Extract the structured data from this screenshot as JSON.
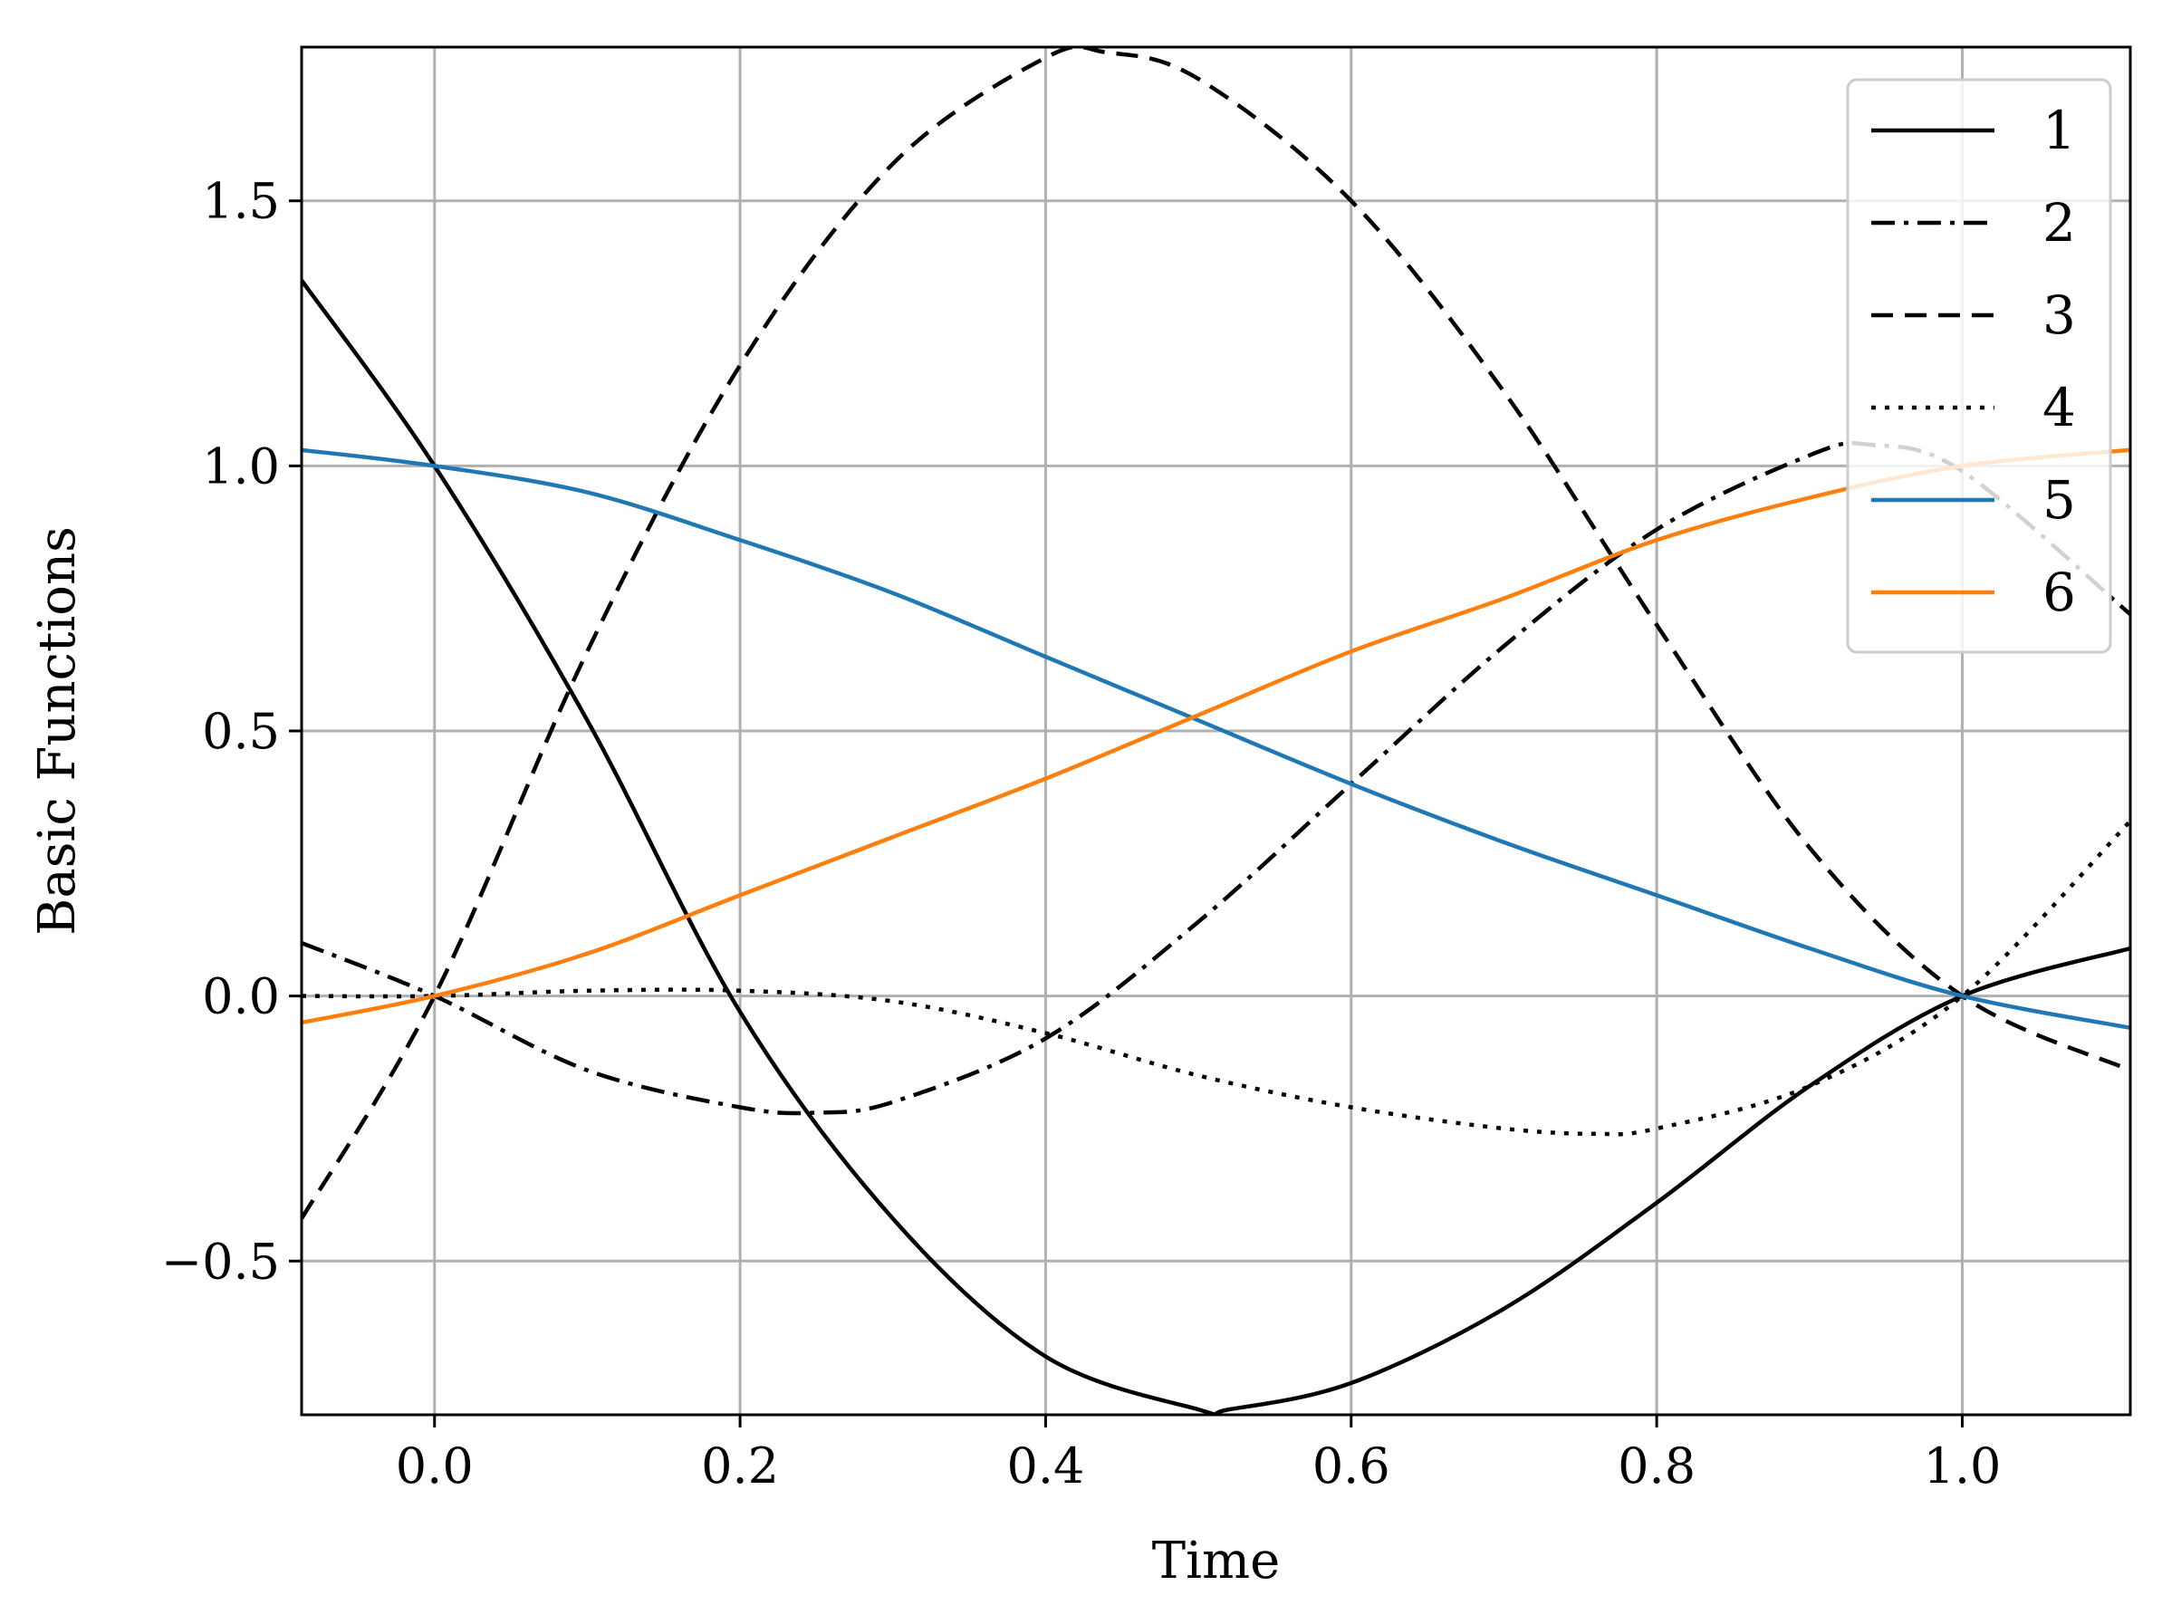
{
  "chart_data": {
    "type": "line",
    "title": "",
    "xlabel": "Time",
    "ylabel": "Basic Functions",
    "xlim": [
      -0.087,
      1.11
    ],
    "ylim": [
      -0.79,
      1.79
    ],
    "xticks": [
      0.0,
      0.2,
      0.4,
      0.6,
      0.8,
      1.0
    ],
    "xtick_labels": [
      "0.0",
      "0.2",
      "0.4",
      "0.6",
      "0.8",
      "1.0"
    ],
    "yticks": [
      -0.5,
      0.0,
      0.5,
      1.0,
      1.5
    ],
    "ytick_labels": [
      "−0.5",
      "0.0",
      "0.5",
      "1.0",
      "1.5"
    ],
    "grid": true,
    "legend_position": "top-right",
    "series": [
      {
        "name": "1",
        "color": "#000000",
        "dash": "solid",
        "x": [
          -0.087,
          0.0,
          0.1,
          0.2,
          0.3,
          0.4,
          0.5,
          0.52,
          0.6,
          0.7,
          0.8,
          0.9,
          1.0,
          1.11
        ],
        "y": [
          1.35,
          1.0,
          0.52,
          -0.03,
          -0.42,
          -0.68,
          -0.78,
          -0.78,
          -0.73,
          -0.59,
          -0.39,
          -0.17,
          0.0,
          0.09
        ]
      },
      {
        "name": "2",
        "color": "#000000",
        "dash": "dashdot",
        "x": [
          -0.087,
          0.0,
          0.1,
          0.2,
          0.25,
          0.3,
          0.4,
          0.5,
          0.6,
          0.7,
          0.8,
          0.9,
          0.94,
          1.0,
          1.11
        ],
        "y": [
          0.1,
          0.0,
          -0.14,
          -0.21,
          -0.22,
          -0.2,
          -0.08,
          0.14,
          0.4,
          0.66,
          0.88,
          1.02,
          1.04,
          0.99,
          0.72
        ]
      },
      {
        "name": "3",
        "color": "#000000",
        "dash": "dashed",
        "x": [
          -0.087,
          0.0,
          0.1,
          0.2,
          0.3,
          0.4,
          0.44,
          0.5,
          0.6,
          0.7,
          0.8,
          0.9,
          1.0,
          1.11
        ],
        "y": [
          -0.42,
          0.0,
          0.65,
          1.19,
          1.57,
          1.77,
          1.78,
          1.73,
          1.5,
          1.14,
          0.7,
          0.28,
          0.0,
          -0.14
        ]
      },
      {
        "name": "4",
        "color": "#000000",
        "dash": "dotted",
        "x": [
          -0.087,
          0.0,
          0.1,
          0.2,
          0.3,
          0.4,
          0.5,
          0.6,
          0.7,
          0.76,
          0.8,
          0.9,
          1.0,
          1.11
        ],
        "y": [
          0.0,
          0.0,
          0.01,
          0.01,
          -0.01,
          -0.07,
          -0.15,
          -0.21,
          -0.25,
          -0.26,
          -0.25,
          -0.17,
          0.0,
          0.33
        ]
      },
      {
        "name": "5",
        "color": "#1f77b4",
        "dash": "solid",
        "x": [
          -0.087,
          0.0,
          0.1,
          0.2,
          0.3,
          0.4,
          0.5,
          0.6,
          0.7,
          0.8,
          0.9,
          1.0,
          1.11
        ],
        "y": [
          1.03,
          1.0,
          0.95,
          0.86,
          0.76,
          0.64,
          0.52,
          0.4,
          0.29,
          0.19,
          0.09,
          0.0,
          -0.06
        ]
      },
      {
        "name": "6",
        "color": "#ff7f0e",
        "dash": "solid",
        "x": [
          -0.087,
          0.0,
          0.1,
          0.2,
          0.3,
          0.4,
          0.5,
          0.6,
          0.7,
          0.8,
          0.9,
          1.0,
          1.11
        ],
        "y": [
          -0.05,
          0.0,
          0.08,
          0.19,
          0.3,
          0.41,
          0.53,
          0.65,
          0.75,
          0.86,
          0.94,
          1.0,
          1.03
        ]
      }
    ]
  }
}
